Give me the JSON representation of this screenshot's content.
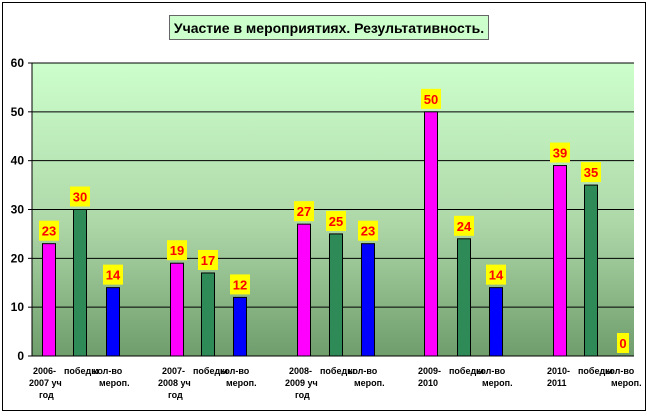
{
  "chart_data": {
    "type": "bar",
    "title": "Участие в мероприятиях. Результативность.",
    "ylim": [
      0,
      60
    ],
    "yticks": [
      0,
      10,
      20,
      30,
      40,
      50,
      60
    ],
    "grid": true,
    "legend": "none",
    "categories": [
      [
        "2006-",
        "2007 уч",
        "год"
      ],
      [
        "победы"
      ],
      [
        "кол-во",
        "мероп."
      ],
      [
        "2007-",
        "2008 уч",
        "год"
      ],
      [
        "победы"
      ],
      [
        "кол-во",
        "мероп."
      ],
      [
        "2008-",
        "2009 уч",
        "год"
      ],
      [
        "победы"
      ],
      [
        "кол-во",
        "мероп."
      ],
      [
        "2009-",
        "2010"
      ],
      [
        "победы"
      ],
      [
        "кол-во",
        "мероп."
      ],
      [
        "2010-",
        "2011"
      ],
      [
        "победы"
      ],
      [
        "кол-во",
        "мероп."
      ]
    ],
    "values": [
      23,
      30,
      14,
      19,
      17,
      12,
      27,
      25,
      23,
      50,
      24,
      14,
      39,
      35,
      0
    ],
    "bar_colors": [
      "#ff00ff",
      "#2e8b57",
      "#0000ff",
      "#ff00ff",
      "#2e8b57",
      "#0000ff",
      "#ff00ff",
      "#2e8b57",
      "#0000ff",
      "#ff00ff",
      "#2e8b57",
      "#0000ff",
      "#ff00ff",
      "#2e8b57",
      "#0000ff"
    ],
    "label_bg": "#ffff00",
    "label_color": "#ff0000"
  }
}
